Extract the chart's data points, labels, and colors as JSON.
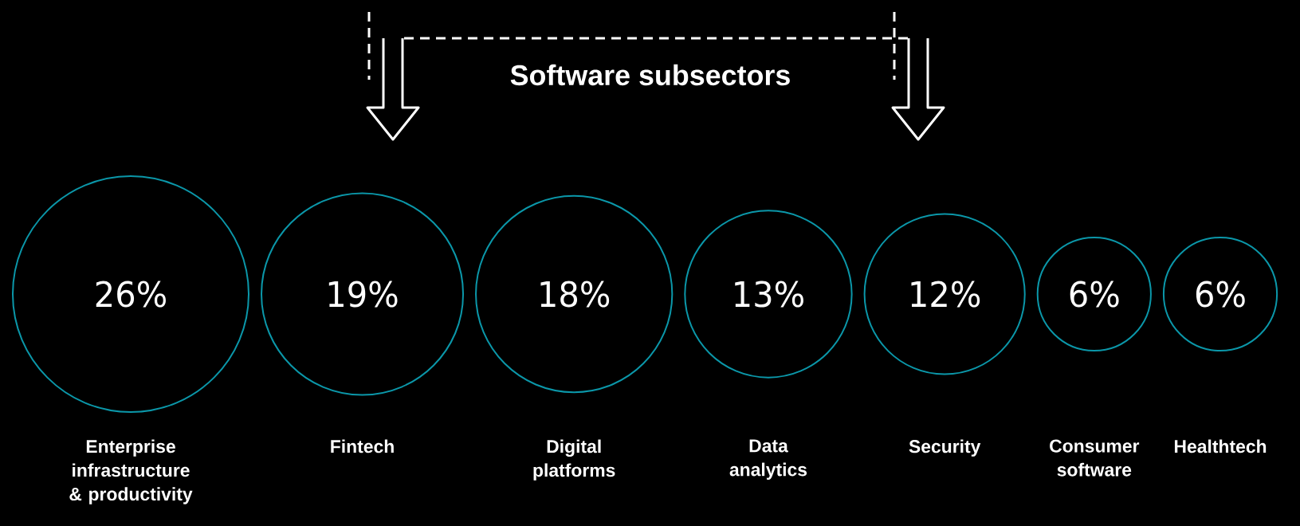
{
  "chart_data": {
    "type": "other",
    "title": "Software subsectors",
    "categories": [
      "Enterprise infrastructure & productivity",
      "Fintech",
      "Digital platforms",
      "Data analytics",
      "Security",
      "Consumer software",
      "Healthtech"
    ],
    "values": [
      26,
      19,
      18,
      13,
      12,
      6,
      6
    ],
    "value_labels": [
      "26%",
      "19%",
      "18%",
      "13%",
      "12%",
      "6%",
      "6%"
    ],
    "color": "#0b97a9"
  }
}
